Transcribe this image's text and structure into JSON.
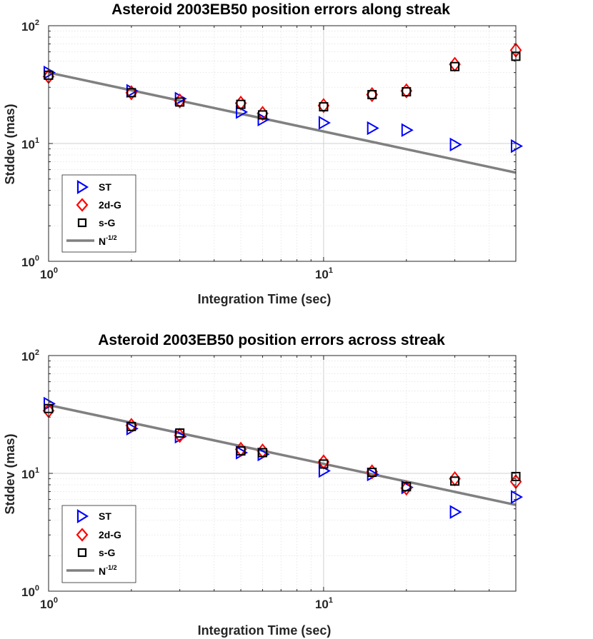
{
  "chart_data": [
    {
      "type": "scatter",
      "title": "Asteroid 2003EB50 position errors along streak",
      "xlabel": "Integration Time (sec)",
      "ylabel": "Stddev (mas)",
      "xscale": "log",
      "yscale": "log",
      "xlim": [
        1,
        50
      ],
      "ylim": [
        1,
        100
      ],
      "grid": true,
      "legend_position": "bottom-left",
      "x_ticks": [
        {
          "base": "10",
          "exp": "0"
        },
        {
          "base": "10",
          "exp": "1"
        }
      ],
      "y_ticks": [
        {
          "base": "10",
          "exp": "0"
        },
        {
          "base": "10",
          "exp": "1"
        },
        {
          "base": "10",
          "exp": "2"
        }
      ],
      "series": [
        {
          "name": "ST",
          "marker": "triangle-right",
          "color": "#0000ff",
          "x": [
            1,
            2,
            3,
            5,
            6,
            10,
            15,
            20,
            30,
            50
          ],
          "y": [
            40,
            28,
            24,
            18.5,
            16,
            15,
            13.5,
            13,
            9.8,
            9.5
          ]
        },
        {
          "name": "2d-G",
          "marker": "diamond",
          "color": "#ff0000",
          "x": [
            1,
            2,
            3,
            5,
            6,
            10,
            15,
            20,
            30,
            50
          ],
          "y": [
            37,
            27,
            23,
            22,
            18,
            21,
            26,
            28,
            47,
            62
          ]
        },
        {
          "name": "s-G",
          "marker": "square",
          "color": "#000000",
          "x": [
            1,
            2,
            3,
            5,
            6,
            10,
            15,
            20,
            30,
            50
          ],
          "y": [
            38,
            27,
            22.5,
            21.5,
            17.5,
            20.5,
            26,
            27.5,
            45,
            55
          ]
        },
        {
          "name": "N^{-1/2}",
          "marker": "line",
          "color": "#808080",
          "x": [
            1,
            50
          ],
          "y": [
            40,
            5.66
          ]
        }
      ]
    },
    {
      "type": "scatter",
      "title": "Asteroid 2003EB50 position errors across streak",
      "xlabel": "Integration Time (sec)",
      "ylabel": "Stddev (mas)",
      "xscale": "log",
      "yscale": "log",
      "xlim": [
        1,
        50
      ],
      "ylim": [
        1,
        100
      ],
      "grid": true,
      "legend_position": "bottom-left",
      "x_ticks": [
        {
          "base": "10",
          "exp": "0"
        },
        {
          "base": "10",
          "exp": "1"
        }
      ],
      "y_ticks": [
        {
          "base": "10",
          "exp": "0"
        },
        {
          "base": "10",
          "exp": "1"
        },
        {
          "base": "10",
          "exp": "2"
        }
      ],
      "series": [
        {
          "name": "ST",
          "marker": "triangle-right",
          "color": "#0000ff",
          "x": [
            1,
            2,
            3,
            5,
            6,
            10,
            15,
            20,
            30,
            50
          ],
          "y": [
            39,
            24,
            20.5,
            15,
            14.5,
            10.5,
            9.8,
            7.6,
            4.7,
            6.3
          ]
        },
        {
          "name": "2d-G",
          "marker": "diamond",
          "color": "#ff0000",
          "x": [
            1,
            2,
            3,
            5,
            6,
            10,
            15,
            20,
            30,
            50
          ],
          "y": [
            34,
            25.5,
            21,
            16,
            15.5,
            12.5,
            10.3,
            7.5,
            9.0,
            8.5
          ]
        },
        {
          "name": "s-G",
          "marker": "square",
          "color": "#000000",
          "x": [
            1,
            2,
            3,
            5,
            6,
            10,
            15,
            20,
            30,
            50
          ],
          "y": [
            35.5,
            25,
            22,
            15.5,
            15,
            12,
            10.2,
            7.7,
            8.6,
            9.4
          ]
        },
        {
          "name": "N^{-1/2}",
          "marker": "line",
          "color": "#808080",
          "x": [
            1,
            50
          ],
          "y": [
            38,
            5.4
          ]
        }
      ]
    }
  ],
  "legend_labels": {
    "st": "ST",
    "g2d": "2d-G",
    "sg": "s-G",
    "n_base": "N",
    "n_exp": "-1/2"
  }
}
